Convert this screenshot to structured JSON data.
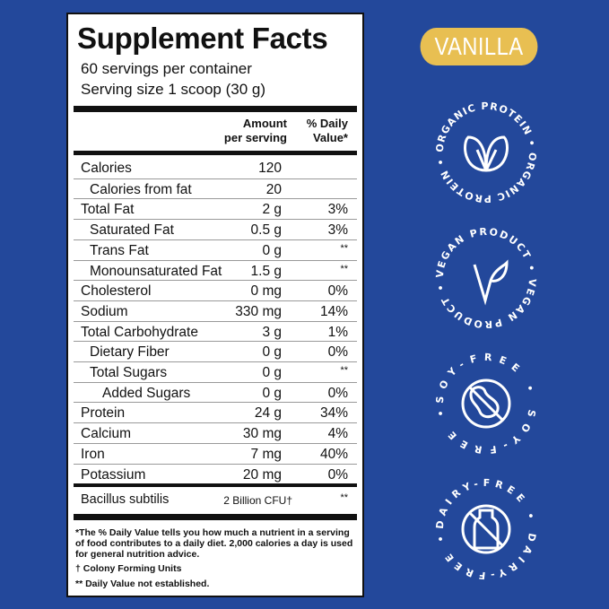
{
  "label": {
    "title": "Supplement Facts",
    "servings": "60 servings per container",
    "serving_size": "Serving size  1 scoop (30 g)",
    "header_amount": [
      "Amount",
      "per serving"
    ],
    "header_dv": [
      "% Daily",
      "Value*"
    ],
    "rows": [
      {
        "name": "Calories",
        "amount": "120",
        "dv": "",
        "indent": 0
      },
      {
        "name": "Calories from fat",
        "amount": "20",
        "dv": "",
        "indent": 1
      },
      {
        "name": "Total Fat",
        "amount": "2 g",
        "dv": "3%",
        "indent": 0
      },
      {
        "name": "Saturated Fat",
        "amount": "0.5 g",
        "dv": "3%",
        "indent": 1
      },
      {
        "name": "Trans Fat",
        "amount": "0 g",
        "dv": "**",
        "indent": 1
      },
      {
        "name": "Monounsaturated Fat",
        "amount": "1.5 g",
        "dv": "**",
        "indent": 1
      },
      {
        "name": "Cholesterol",
        "amount": "0 mg",
        "dv": "0%",
        "indent": 0
      },
      {
        "name": "Sodium",
        "amount": "330 mg",
        "dv": "14%",
        "indent": 0
      },
      {
        "name": "Total Carbohydrate",
        "amount": "3 g",
        "dv": "1%",
        "indent": 0
      },
      {
        "name": "Dietary Fiber",
        "amount": "0 g",
        "dv": "0%",
        "indent": 1
      },
      {
        "name": "Total Sugars",
        "amount": "0 g",
        "dv": "**",
        "indent": 1
      },
      {
        "name": "Added Sugars",
        "amount": "0 g",
        "dv": "0%",
        "indent": 2
      },
      {
        "name": "Protein",
        "amount": "24 g",
        "dv": "34%",
        "indent": 0
      },
      {
        "name": "Calcium",
        "amount": "30 mg",
        "dv": "4%",
        "indent": 0
      },
      {
        "name": "Iron",
        "amount": "7 mg",
        "dv": "40%",
        "indent": 0
      },
      {
        "name": "Potassium",
        "amount": "20 mg",
        "dv": "0%",
        "indent": 0
      }
    ],
    "bacillus": {
      "name": "Bacillus subtilis",
      "amount": "2 Billion CFU†",
      "dv": "**"
    },
    "footnotes": [
      "*The % Daily Value tells you how much a nutrient in a serving of food contributes to a daily diet. 2,000 calories a day is used for general nutrition advice.",
      "† Colony Forming Units",
      "** Daily Value not established."
    ]
  },
  "flavor": "VANILLA",
  "badges": [
    {
      "text": "ORGANIC PROTEIN • ORGANIC PROTEIN •",
      "icon": "leaf-icon"
    },
    {
      "text": "VEGAN PRODUCT • VEGAN PRODUCT •",
      "icon": "vegan-leaf-icon"
    },
    {
      "text": "SOY-FREE • SOY-FREE •",
      "icon": "no-soy-icon"
    },
    {
      "text": "DAIRY-FREE • DAIRY-FREE •",
      "icon": "no-dairy-icon"
    }
  ],
  "colors": {
    "background": "#23489b",
    "pill": "#e8bf52"
  }
}
